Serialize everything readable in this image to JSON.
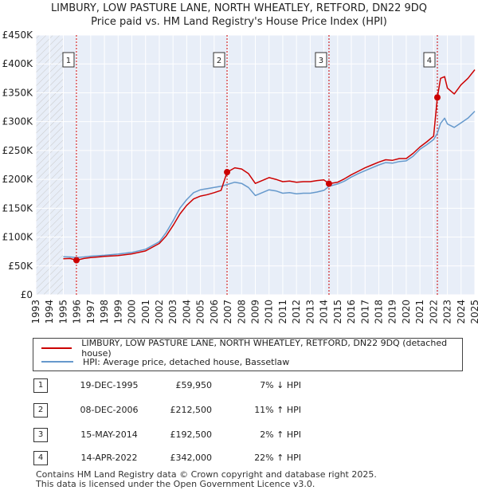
{
  "title": {
    "line1": "LIMBURY, LOW PASTURE LANE, NORTH WHEATLEY, RETFORD, DN22 9DQ",
    "line2": "Price paid vs. HM Land Registry's House Price Index (HPI)"
  },
  "chart_data": {
    "type": "line",
    "x_range": [
      1993,
      2025
    ],
    "ylim": [
      0,
      450000
    ],
    "y_ticks": [
      {
        "value": 0,
        "label": "£0"
      },
      {
        "value": 50000,
        "label": "£50K"
      },
      {
        "value": 100000,
        "label": "£100K"
      },
      {
        "value": 150000,
        "label": "£150K"
      },
      {
        "value": 200000,
        "label": "£200K"
      },
      {
        "value": 250000,
        "label": "£250K"
      },
      {
        "value": 300000,
        "label": "£300K"
      },
      {
        "value": 350000,
        "label": "£350K"
      },
      {
        "value": 400000,
        "label": "£400K"
      },
      {
        "value": 450000,
        "label": "£450K"
      }
    ],
    "x_ticks": [
      "1993",
      "1994",
      "1995",
      "1996",
      "1997",
      "1998",
      "1999",
      "2000",
      "2001",
      "2002",
      "2003",
      "2004",
      "2005",
      "2006",
      "2007",
      "2008",
      "2009",
      "2010",
      "2011",
      "2012",
      "2013",
      "2014",
      "2015",
      "2016",
      "2017",
      "2018",
      "2019",
      "2020",
      "2021",
      "2022",
      "2023",
      "2024",
      "2025"
    ],
    "hatched_before": 1995.0,
    "series": [
      {
        "name": "LIMBURY, LOW PASTURE LANE, NORTH WHEATLEY, RETFORD, DN22 9DQ (detached house)",
        "color": "#cc0000",
        "points": [
          [
            1995.0,
            62500
          ],
          [
            1995.5,
            63000
          ],
          [
            1995.96,
            59950
          ],
          [
            1996.5,
            63000
          ],
          [
            1997,
            64500
          ],
          [
            1998,
            66500
          ],
          [
            1999,
            68000
          ],
          [
            2000,
            71000
          ],
          [
            2001,
            76000
          ],
          [
            2002,
            89000
          ],
          [
            2002.5,
            102000
          ],
          [
            2003,
            120000
          ],
          [
            2003.5,
            140000
          ],
          [
            2004,
            155000
          ],
          [
            2004.5,
            166000
          ],
          [
            2005,
            171000
          ],
          [
            2005.5,
            173500
          ],
          [
            2006,
            177000
          ],
          [
            2006.5,
            181000
          ],
          [
            2006.94,
            212500
          ],
          [
            2007.5,
            220000
          ],
          [
            2008,
            218000
          ],
          [
            2008.5,
            210000
          ],
          [
            2009,
            193000
          ],
          [
            2009.5,
            198000
          ],
          [
            2010,
            203000
          ],
          [
            2010.5,
            200000
          ],
          [
            2011,
            196000
          ],
          [
            2011.5,
            197000
          ],
          [
            2012,
            195000
          ],
          [
            2012.5,
            196000
          ],
          [
            2013,
            196000
          ],
          [
            2013.5,
            198000
          ],
          [
            2014.0,
            199000
          ],
          [
            2014.37,
            192500
          ],
          [
            2015,
            195000
          ],
          [
            2015.5,
            201000
          ],
          [
            2016,
            208000
          ],
          [
            2016.5,
            214000
          ],
          [
            2017,
            220000
          ],
          [
            2017.5,
            225000
          ],
          [
            2018,
            230000
          ],
          [
            2018.5,
            234000
          ],
          [
            2019,
            233000
          ],
          [
            2019.5,
            236000
          ],
          [
            2020,
            236000
          ],
          [
            2020.5,
            245000
          ],
          [
            2021,
            256000
          ],
          [
            2021.5,
            265000
          ],
          [
            2022.0,
            275000
          ],
          [
            2022.27,
            342000
          ],
          [
            2022.5,
            375000
          ],
          [
            2022.8,
            378000
          ],
          [
            2023,
            358000
          ],
          [
            2023.5,
            348000
          ],
          [
            2024,
            364000
          ],
          [
            2024.5,
            375000
          ],
          [
            2025,
            390000
          ]
        ]
      },
      {
        "name": "HPI: Average price, detached house, Bassetlaw",
        "color": "#6699cc",
        "points": [
          [
            1995.0,
            66000
          ],
          [
            1995.5,
            65500
          ],
          [
            1995.96,
            64500
          ],
          [
            1996.5,
            65500
          ],
          [
            1997,
            67000
          ],
          [
            1998,
            68500
          ],
          [
            1999,
            70500
          ],
          [
            2000,
            73500
          ],
          [
            2001,
            79000
          ],
          [
            2002,
            92000
          ],
          [
            2002.5,
            108000
          ],
          [
            2003,
            128000
          ],
          [
            2003.5,
            150000
          ],
          [
            2004,
            165000
          ],
          [
            2004.5,
            177000
          ],
          [
            2005,
            182000
          ],
          [
            2005.5,
            184000
          ],
          [
            2006,
            186000
          ],
          [
            2006.5,
            188000
          ],
          [
            2006.94,
            191000
          ],
          [
            2007.5,
            195000
          ],
          [
            2008,
            193000
          ],
          [
            2008.5,
            186000
          ],
          [
            2009,
            172000
          ],
          [
            2009.5,
            177000
          ],
          [
            2010,
            182000
          ],
          [
            2010.5,
            180000
          ],
          [
            2011,
            176000
          ],
          [
            2011.5,
            177000
          ],
          [
            2012,
            175000
          ],
          [
            2012.5,
            176000
          ],
          [
            2013,
            176000
          ],
          [
            2013.5,
            178000
          ],
          [
            2014.0,
            181000
          ],
          [
            2014.37,
            188000
          ],
          [
            2015,
            192000
          ],
          [
            2015.5,
            197000
          ],
          [
            2016,
            204000
          ],
          [
            2016.5,
            210000
          ],
          [
            2017,
            215000
          ],
          [
            2017.5,
            220000
          ],
          [
            2018,
            225000
          ],
          [
            2018.5,
            229000
          ],
          [
            2019,
            228000
          ],
          [
            2019.5,
            231000
          ],
          [
            2020,
            232000
          ],
          [
            2020.5,
            240000
          ],
          [
            2021,
            252000
          ],
          [
            2021.5,
            260000
          ],
          [
            2022.0,
            269000
          ],
          [
            2022.27,
            280000
          ],
          [
            2022.5,
            297000
          ],
          [
            2022.8,
            306000
          ],
          [
            2023,
            296000
          ],
          [
            2023.5,
            290000
          ],
          [
            2024,
            298000
          ],
          [
            2024.5,
            306000
          ],
          [
            2025,
            318000
          ]
        ]
      }
    ],
    "sales": [
      {
        "id": "1",
        "x": 1995.96,
        "y": 59950
      },
      {
        "id": "2",
        "x": 2006.94,
        "y": 212500
      },
      {
        "id": "3",
        "x": 2014.37,
        "y": 192500
      },
      {
        "id": "4",
        "x": 2022.27,
        "y": 342000
      }
    ]
  },
  "legend": {
    "property_label": "LIMBURY, LOW PASTURE LANE, NORTH WHEATLEY, RETFORD, DN22 9DQ (detached house)",
    "hpi_label": "HPI: Average price, detached house, Bassetlaw",
    "property_color": "#cc0000",
    "hpi_color": "#6699cc"
  },
  "transactions": [
    {
      "num": "1",
      "date": "19-DEC-1995",
      "price": "£59,950",
      "hpi": "7% ↓ HPI"
    },
    {
      "num": "2",
      "date": "08-DEC-2006",
      "price": "£212,500",
      "hpi": "11% ↑ HPI"
    },
    {
      "num": "3",
      "date": "15-MAY-2014",
      "price": "£192,500",
      "hpi": "2% ↑ HPI"
    },
    {
      "num": "4",
      "date": "14-APR-2022",
      "price": "£342,000",
      "hpi": "22% ↑ HPI"
    }
  ],
  "footer": {
    "line1": "Contains HM Land Registry data © Crown copyright and database right 2025.",
    "line2": "This data is licensed under the Open Government Licence v3.0."
  }
}
